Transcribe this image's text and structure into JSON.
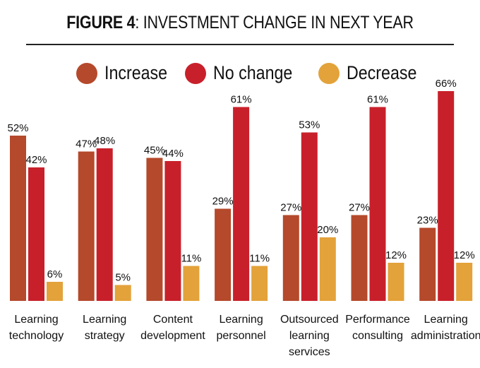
{
  "chart_data": {
    "type": "bar",
    "title_bold": "FIGURE 4",
    "title_rest": ": INVESTMENT CHANGE IN NEXT YEAR",
    "categories": [
      [
        "Learning",
        "technology"
      ],
      [
        "Learning",
        "strategy"
      ],
      [
        "Content",
        "development"
      ],
      [
        "Learning",
        "personnel"
      ],
      [
        "Outsourced",
        "learning",
        "services"
      ],
      [
        "Performance",
        "consulting"
      ],
      [
        "Learning",
        "administration"
      ]
    ],
    "series": [
      {
        "name": "Increase",
        "color": "#B5492B",
        "values": [
          52,
          47,
          45,
          29,
          27,
          27,
          23
        ]
      },
      {
        "name": "No change",
        "color": "#C8202A",
        "values": [
          42,
          48,
          44,
          61,
          53,
          61,
          66
        ]
      },
      {
        "name": "Decrease",
        "color": "#E3A23A",
        "values": [
          6,
          5,
          11,
          11,
          20,
          12,
          12
        ]
      }
    ],
    "value_suffix": "%",
    "ylim": [
      0,
      70
    ],
    "legend_position": "top-center",
    "grid": false
  }
}
